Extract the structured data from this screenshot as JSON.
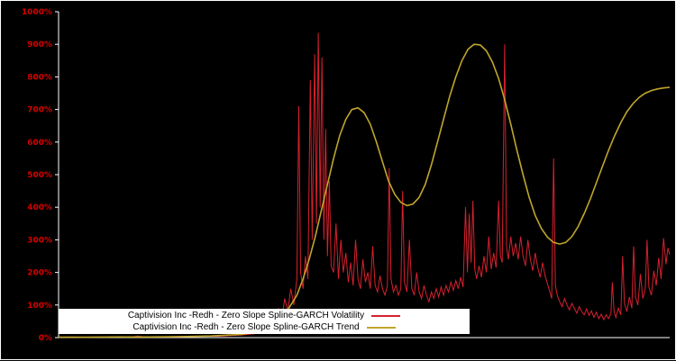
{
  "page": {
    "background": "#000000",
    "border_color": "#ffffff"
  },
  "axis": {
    "label_color": "#d40000",
    "axis_color": "#ffffff"
  },
  "chart_data": {
    "type": "line",
    "title": "",
    "xlabel": "",
    "ylabel": "",
    "grid": false,
    "legend_position": "bottom-center",
    "xlim": [
      0,
      100
    ],
    "ylim": [
      0,
      1000
    ],
    "ytick_labels": [
      "0%",
      "100%",
      "200%",
      "300%",
      "400%",
      "500%",
      "600%",
      "700%",
      "800%",
      "900%",
      "1000%"
    ],
    "series": [
      {
        "name": "Captivision Inc -Redh - Zero Slope Spline-GARCH Volatility",
        "color": "#d6212e",
        "width": 1,
        "points": [
          [
            0,
            1
          ],
          [
            2,
            2
          ],
          [
            4,
            1
          ],
          [
            6,
            2
          ],
          [
            8,
            1
          ],
          [
            10,
            3
          ],
          [
            12,
            2
          ],
          [
            13,
            5
          ],
          [
            14,
            2
          ],
          [
            16,
            3
          ],
          [
            18,
            2
          ],
          [
            20,
            4
          ],
          [
            22,
            3
          ],
          [
            24,
            5
          ],
          [
            26,
            4
          ],
          [
            28,
            6
          ],
          [
            30,
            8
          ],
          [
            32,
            12
          ],
          [
            33,
            20
          ],
          [
            34,
            40
          ],
          [
            34.5,
            25
          ],
          [
            35,
            60
          ],
          [
            35.5,
            40
          ],
          [
            36,
            90
          ],
          [
            36.5,
            55
          ],
          [
            37,
            120
          ],
          [
            37.5,
            80
          ],
          [
            38,
            150
          ],
          [
            38.5,
            100
          ],
          [
            39,
            180
          ],
          [
            39.3,
            710
          ],
          [
            39.6,
            200
          ],
          [
            40,
            150
          ],
          [
            40.4,
            250
          ],
          [
            40.8,
            180
          ],
          [
            41.2,
            790
          ],
          [
            41.5,
            300
          ],
          [
            41.9,
            870
          ],
          [
            42.2,
            350
          ],
          [
            42.5,
            935
          ],
          [
            42.8,
            400
          ],
          [
            43.1,
            860
          ],
          [
            43.4,
            300
          ],
          [
            43.7,
            640
          ],
          [
            44,
            250
          ],
          [
            44.3,
            480
          ],
          [
            44.6,
            220
          ],
          [
            45,
            200
          ],
          [
            45.4,
            350
          ],
          [
            45.8,
            180
          ],
          [
            46.2,
            300
          ],
          [
            46.6,
            200
          ],
          [
            47,
            260
          ],
          [
            47.4,
            170
          ],
          [
            47.8,
            230
          ],
          [
            48.2,
            160
          ],
          [
            48.6,
            300
          ],
          [
            49,
            180
          ],
          [
            49.4,
            150
          ],
          [
            49.8,
            240
          ],
          [
            50.2,
            170
          ],
          [
            50.6,
            200
          ],
          [
            51,
            150
          ],
          [
            51.4,
            280
          ],
          [
            51.8,
            160
          ],
          [
            52.2,
            140
          ],
          [
            52.6,
            190
          ],
          [
            53,
            150
          ],
          [
            53.4,
            130
          ],
          [
            53.8,
            160
          ],
          [
            54.1,
            520
          ],
          [
            54.4,
            180
          ],
          [
            54.8,
            140
          ],
          [
            55.2,
            160
          ],
          [
            55.6,
            130
          ],
          [
            56,
            150
          ],
          [
            56.3,
            450
          ],
          [
            56.6,
            170
          ],
          [
            57,
            140
          ],
          [
            57.4,
            300
          ],
          [
            57.8,
            150
          ],
          [
            58.2,
            130
          ],
          [
            58.6,
            200
          ],
          [
            59,
            140
          ],
          [
            59.4,
            120
          ],
          [
            59.8,
            160
          ],
          [
            60.2,
            130
          ],
          [
            60.6,
            110
          ],
          [
            61,
            140
          ],
          [
            61.4,
            120
          ],
          [
            61.8,
            150
          ],
          [
            62.2,
            125
          ],
          [
            62.6,
            155
          ],
          [
            63,
            130
          ],
          [
            63.4,
            160
          ],
          [
            63.8,
            140
          ],
          [
            64.2,
            170
          ],
          [
            64.6,
            145
          ],
          [
            65,
            175
          ],
          [
            65.4,
            150
          ],
          [
            65.8,
            185
          ],
          [
            66.2,
            155
          ],
          [
            66.6,
            400
          ],
          [
            66.9,
            200
          ],
          [
            67.2,
            380
          ],
          [
            67.5,
            230
          ],
          [
            67.8,
            420
          ],
          [
            68.1,
            210
          ],
          [
            68.4,
            180
          ],
          [
            68.8,
            220
          ],
          [
            69.2,
            185
          ],
          [
            69.6,
            250
          ],
          [
            70,
            200
          ],
          [
            70.4,
            310
          ],
          [
            70.8,
            210
          ],
          [
            71.2,
            260
          ],
          [
            71.6,
            215
          ],
          [
            72,
            420
          ],
          [
            72.3,
            250
          ],
          [
            72.6,
            230
          ],
          [
            73,
            900
          ],
          [
            73.3,
            280
          ],
          [
            73.6,
            240
          ],
          [
            74,
            310
          ],
          [
            74.4,
            250
          ],
          [
            74.8,
            290
          ],
          [
            75.2,
            240
          ],
          [
            75.6,
            310
          ],
          [
            76,
            250
          ],
          [
            76.4,
            220
          ],
          [
            76.8,
            300
          ],
          [
            77.2,
            240
          ],
          [
            77.6,
            205
          ],
          [
            78,
            260
          ],
          [
            78.4,
            215
          ],
          [
            78.8,
            185
          ],
          [
            79.2,
            230
          ],
          [
            79.6,
            190
          ],
          [
            80,
            165
          ],
          [
            80.4,
            140
          ],
          [
            80.7,
            120
          ],
          [
            81,
            550
          ],
          [
            81.3,
            160
          ],
          [
            81.6,
            130
          ],
          [
            82,
            110
          ],
          [
            82.4,
            95
          ],
          [
            82.8,
            120
          ],
          [
            83.2,
            100
          ],
          [
            83.6,
            85
          ],
          [
            84,
            105
          ],
          [
            84.4,
            90
          ],
          [
            84.8,
            75
          ],
          [
            85.2,
            95
          ],
          [
            85.6,
            80
          ],
          [
            86,
            70
          ],
          [
            86.4,
            88
          ],
          [
            86.8,
            68
          ],
          [
            87.2,
            82
          ],
          [
            87.6,
            62
          ],
          [
            88,
            78
          ],
          [
            88.4,
            58
          ],
          [
            88.8,
            72
          ],
          [
            89.2,
            55
          ],
          [
            89.6,
            70
          ],
          [
            90,
            58
          ],
          [
            90.4,
            75
          ],
          [
            90.6,
            170
          ],
          [
            90.9,
            80
          ],
          [
            91.2,
            62
          ],
          [
            91.6,
            90
          ],
          [
            92,
            70
          ],
          [
            92.3,
            250
          ],
          [
            92.6,
            105
          ],
          [
            93,
            80
          ],
          [
            93.4,
            125
          ],
          [
            93.8,
            90
          ],
          [
            94.1,
            280
          ],
          [
            94.4,
            125
          ],
          [
            94.8,
            100
          ],
          [
            95.2,
            195
          ],
          [
            95.6,
            120
          ],
          [
            96,
            150
          ],
          [
            96.3,
            300
          ],
          [
            96.6,
            155
          ],
          [
            97,
            130
          ],
          [
            97.4,
            205
          ],
          [
            97.8,
            160
          ],
          [
            98.2,
            245
          ],
          [
            98.6,
            180
          ],
          [
            99,
            305
          ],
          [
            99.4,
            225
          ],
          [
            99.7,
            275
          ],
          [
            100,
            255
          ]
        ]
      },
      {
        "name": "Captivision Inc -Redh - Zero Slope Spline-GARCH Trend",
        "color": "#c0a62b",
        "width": 1.6,
        "points": [
          [
            0,
            1
          ],
          [
            5,
            1
          ],
          [
            10,
            2
          ],
          [
            15,
            2
          ],
          [
            20,
            3
          ],
          [
            25,
            5
          ],
          [
            30,
            10
          ],
          [
            33,
            20
          ],
          [
            35,
            35
          ],
          [
            37,
            70
          ],
          [
            39,
            130
          ],
          [
            40,
            180
          ],
          [
            41,
            240
          ],
          [
            42,
            310
          ],
          [
            43,
            390
          ],
          [
            44,
            470
          ],
          [
            45,
            550
          ],
          [
            46,
            620
          ],
          [
            47,
            670
          ],
          [
            48,
            700
          ],
          [
            49,
            705
          ],
          [
            50,
            690
          ],
          [
            51,
            655
          ],
          [
            52,
            600
          ],
          [
            53,
            540
          ],
          [
            54,
            480
          ],
          [
            55,
            440
          ],
          [
            56,
            415
          ],
          [
            57,
            405
          ],
          [
            58,
            410
          ],
          [
            59,
            430
          ],
          [
            60,
            470
          ],
          [
            61,
            530
          ],
          [
            62,
            600
          ],
          [
            63,
            670
          ],
          [
            64,
            740
          ],
          [
            65,
            800
          ],
          [
            66,
            850
          ],
          [
            67,
            885
          ],
          [
            68,
            900
          ],
          [
            69,
            898
          ],
          [
            70,
            880
          ],
          [
            71,
            845
          ],
          [
            72,
            795
          ],
          [
            73,
            730
          ],
          [
            74,
            655
          ],
          [
            75,
            575
          ],
          [
            76,
            500
          ],
          [
            77,
            430
          ],
          [
            78,
            375
          ],
          [
            79,
            335
          ],
          [
            80,
            308
          ],
          [
            81,
            292
          ],
          [
            82,
            287
          ],
          [
            83,
            292
          ],
          [
            84,
            310
          ],
          [
            85,
            340
          ],
          [
            86,
            380
          ],
          [
            87,
            425
          ],
          [
            88,
            475
          ],
          [
            89,
            525
          ],
          [
            90,
            575
          ],
          [
            91,
            620
          ],
          [
            92,
            660
          ],
          [
            93,
            693
          ],
          [
            94,
            718
          ],
          [
            95,
            737
          ],
          [
            96,
            750
          ],
          [
            97,
            758
          ],
          [
            98,
            763
          ],
          [
            99,
            766
          ],
          [
            100,
            768
          ]
        ]
      }
    ]
  }
}
